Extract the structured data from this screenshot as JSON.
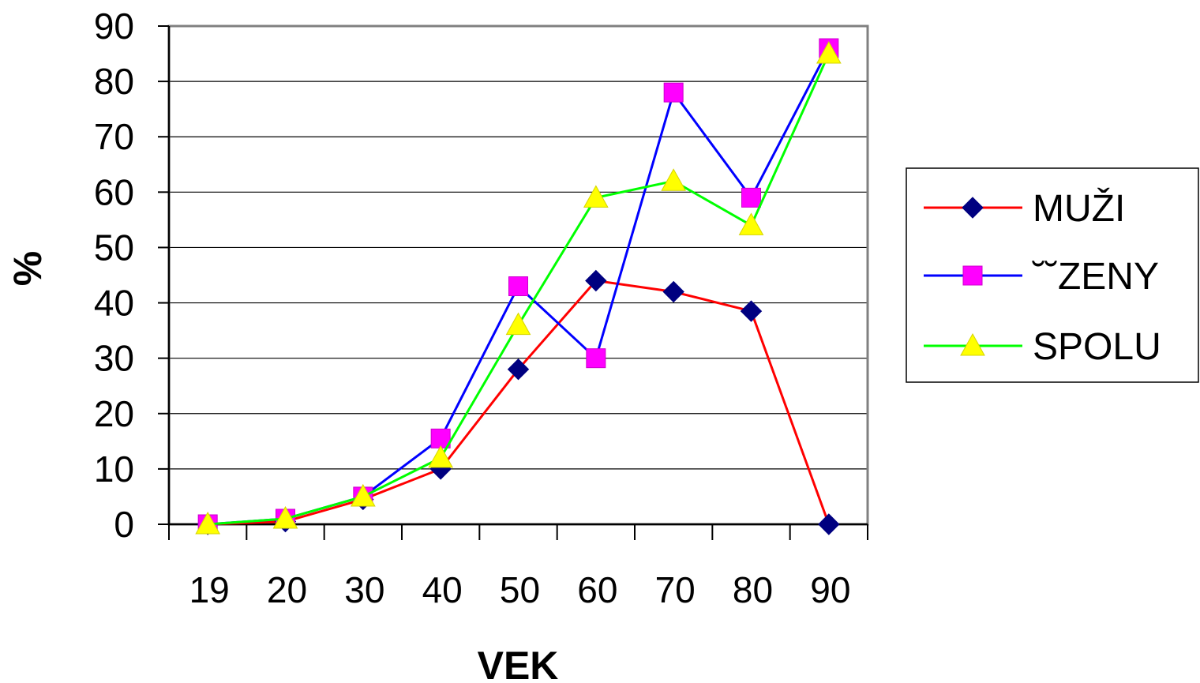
{
  "chart_data": {
    "type": "line",
    "title": "",
    "xlabel": "VEK",
    "ylabel": "%",
    "categories": [
      "19",
      "20",
      "30",
      "40",
      "50",
      "60",
      "70",
      "80",
      "90"
    ],
    "y_ticks": [
      0,
      10,
      20,
      30,
      40,
      50,
      60,
      70,
      80,
      90
    ],
    "ylim": [
      0,
      90
    ],
    "grid": true,
    "legend_position": "right",
    "series": [
      {
        "name": "MUŽI",
        "color": "#ff0000",
        "marker": "diamond",
        "marker_color": "#000080",
        "values": [
          0,
          0.5,
          4.5,
          10,
          28,
          44,
          42,
          38.5,
          0
        ]
      },
      {
        "name": "˘˘ZENY",
        "color": "#0000ff",
        "marker": "square",
        "marker_color": "#ff00ff",
        "values": [
          0,
          1,
          5,
          15.5,
          43,
          30,
          78,
          59,
          86
        ]
      },
      {
        "name": "SPOLU",
        "color": "#00ff00",
        "marker": "triangle",
        "marker_color": "#ffff00",
        "values": [
          0,
          1,
          5,
          12,
          36,
          59,
          62,
          54,
          85
        ]
      }
    ]
  }
}
